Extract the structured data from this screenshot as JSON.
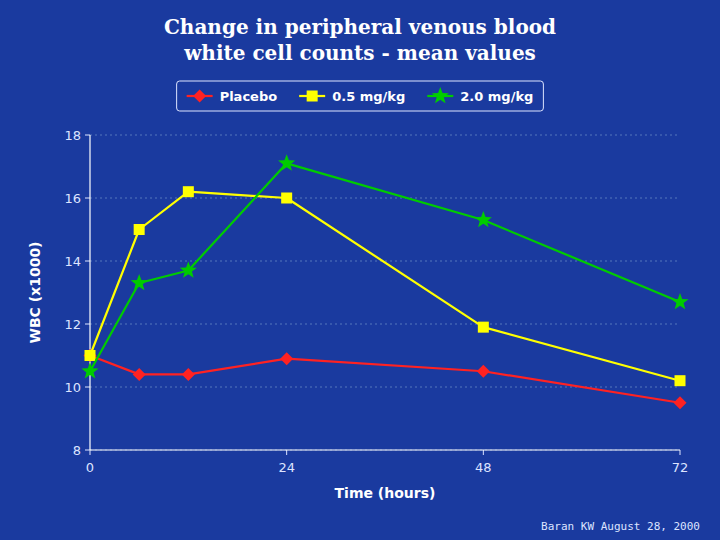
{
  "chart_data": {
    "type": "line",
    "title": "Change in peripheral venous blood\nwhite cell counts - mean values",
    "x_label": "Time (hours)",
    "y_label": "WBC (x1000)",
    "x": [
      0,
      6,
      12,
      24,
      48,
      72
    ],
    "series": [
      {
        "name": "Placebo",
        "color": "#ff2222",
        "marker": "diamond",
        "values": [
          11.0,
          10.4,
          10.4,
          10.9,
          10.5,
          9.5
        ]
      },
      {
        "name": "0.5 mg/kg",
        "color": "#ffff00",
        "marker": "square",
        "values": [
          11.0,
          15.0,
          16.2,
          16.0,
          11.9,
          10.2
        ]
      },
      {
        "name": "2.0 mg/kg",
        "color": "#00cc00",
        "marker": "star",
        "values": [
          10.5,
          13.3,
          13.7,
          17.1,
          15.3,
          12.7
        ]
      }
    ],
    "xlim": [
      0,
      72
    ],
    "xticks": [
      0,
      24,
      48,
      72
    ],
    "ylim": [
      8,
      18
    ],
    "yticks": [
      8,
      10,
      12,
      14,
      16,
      18
    ],
    "grid": true,
    "legend": "top",
    "annotations": [
      "Baran KW August 28, 2000"
    ]
  }
}
